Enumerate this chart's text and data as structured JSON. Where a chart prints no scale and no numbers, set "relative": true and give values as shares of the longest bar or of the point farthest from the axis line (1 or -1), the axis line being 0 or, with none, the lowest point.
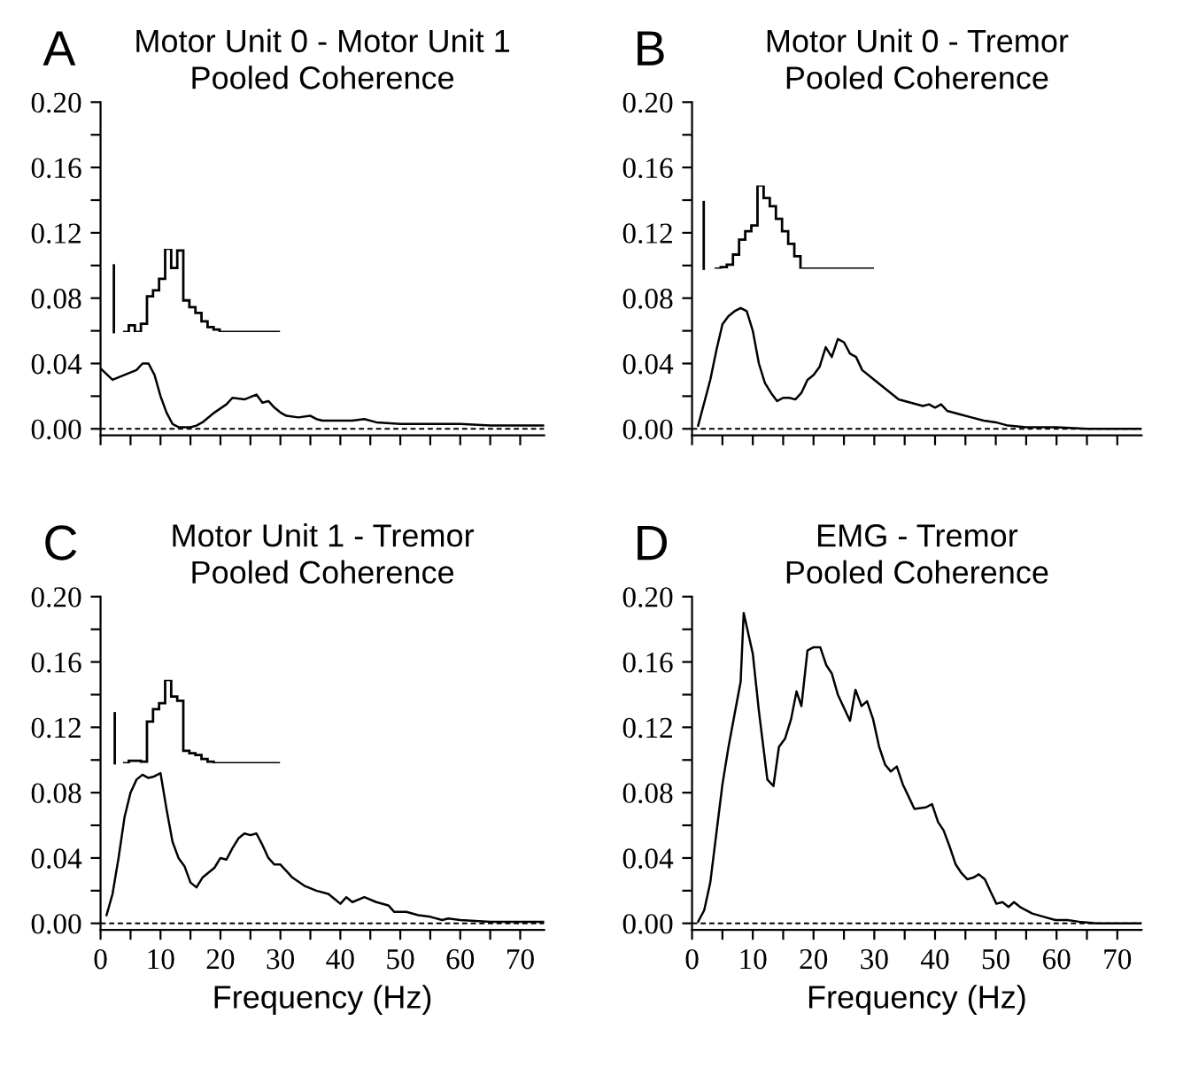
{
  "chart_data": [
    {
      "type": "line",
      "title": "Motor Unit 0 - Motor Unit 1",
      "subtitle": "Pooled Coherence",
      "annotations": [
        "A"
      ],
      "tick_labels": "y",
      "x": [
        0,
        2,
        4,
        6,
        7,
        8,
        9,
        10,
        11,
        12,
        13,
        15,
        16,
        17,
        19,
        21,
        22,
        24,
        26,
        27,
        28,
        29,
        30,
        31,
        33,
        35,
        36,
        37,
        40,
        42,
        44,
        46,
        50,
        55,
        60,
        65,
        70,
        74
      ],
      "series": [
        {
          "color": "#000000",
          "values": [
            0.037,
            0.03,
            0.033,
            0.036,
            0.04,
            0.04,
            0.033,
            0.02,
            0.01,
            0.003,
            0.001,
            0.001,
            0.002,
            0.004,
            0.01,
            0.015,
            0.019,
            0.018,
            0.021,
            0.016,
            0.017,
            0.013,
            0.01,
            0.008,
            0.007,
            0.008,
            0.006,
            0.005,
            0.005,
            0.005,
            0.006,
            0.004,
            0.003,
            0.003,
            0.003,
            0.002,
            0.002,
            0.002
          ]
        }
      ],
      "xlim": [
        0,
        74
      ],
      "ylim": [
        -0.004,
        0.2
      ],
      "xticks": [
        0,
        {
          "value": 5,
          "label": null
        },
        10,
        {
          "value": 15,
          "label": null
        },
        20,
        {
          "value": 25,
          "label": null
        },
        30,
        {
          "value": 35,
          "label": null
        },
        40,
        {
          "value": 45,
          "label": null
        },
        50,
        {
          "value": 55,
          "label": null
        },
        60,
        {
          "value": 65,
          "label": null
        },
        70
      ],
      "yticks": [
        {
          "value": 0,
          "label": "0.00"
        },
        {
          "value": 0.02,
          "label": null
        },
        {
          "value": 0.04,
          "label": "0.04"
        },
        {
          "value": 0.06,
          "label": null
        },
        {
          "value": 0.08,
          "label": "0.08"
        },
        {
          "value": 0.1,
          "label": null
        },
        {
          "value": 0.12,
          "label": "0.12"
        },
        {
          "value": 0.14,
          "label": null
        },
        {
          "value": 0.16,
          "label": "0.16"
        },
        {
          "value": 0.18,
          "label": null
        },
        {
          "value": 0.2,
          "label": "0.20"
        }
      ],
      "ref_lines": [
        {
          "axis": "y",
          "value": 0,
          "line_style": "dashed",
          "color": "#000000"
        }
      ]
    },
    {
      "type": "step",
      "relative": true,
      "categories": [
        null,
        null,
        null,
        null,
        null,
        null,
        null,
        null,
        null,
        null,
        null,
        null,
        null,
        null,
        null,
        null,
        null,
        null,
        null,
        null,
        null,
        null,
        null,
        null,
        null,
        null
      ],
      "values": [
        0,
        0.08,
        0,
        0.1,
        0.43,
        0.5,
        0.64,
        1.0,
        0.77,
        0.98,
        0.38,
        0.3,
        0.23,
        0.13,
        0.06,
        0.03,
        0,
        0,
        0,
        0,
        0,
        0,
        0,
        0,
        0,
        0
      ],
      "color": "#000000"
    },
    {
      "type": "line",
      "title": "Motor Unit 0 - Tremor",
      "subtitle": "Pooled Coherence",
      "annotations": [
        "B"
      ],
      "tick_labels": "y",
      "x": [
        1,
        3,
        4,
        5,
        6,
        7,
        8,
        9,
        10,
        11,
        12,
        13,
        14,
        15,
        16,
        17,
        18,
        19,
        20,
        21,
        22,
        23,
        24,
        25,
        26,
        27,
        28,
        30,
        32,
        34,
        36,
        38,
        39,
        40,
        41,
        42,
        44,
        46,
        48,
        50,
        52,
        55,
        60,
        65,
        70,
        74
      ],
      "series": [
        {
          "color": "#000000",
          "values": [
            0.002,
            0.03,
            0.048,
            0.064,
            0.069,
            0.072,
            0.074,
            0.072,
            0.06,
            0.04,
            0.028,
            0.022,
            0.017,
            0.019,
            0.019,
            0.018,
            0.022,
            0.03,
            0.033,
            0.038,
            0.05,
            0.044,
            0.055,
            0.053,
            0.046,
            0.044,
            0.036,
            0.03,
            0.024,
            0.018,
            0.016,
            0.014,
            0.015,
            0.013,
            0.015,
            0.011,
            0.009,
            0.007,
            0.005,
            0.004,
            0.002,
            0.001,
            0.001,
            0,
            0,
            0
          ]
        }
      ],
      "xlim": [
        0,
        74
      ],
      "ylim": [
        -0.004,
        0.2
      ],
      "xticks": [
        0,
        {
          "value": 5,
          "label": null
        },
        10,
        {
          "value": 15,
          "label": null
        },
        20,
        {
          "value": 25,
          "label": null
        },
        30,
        {
          "value": 35,
          "label": null
        },
        40,
        {
          "value": 45,
          "label": null
        },
        50,
        {
          "value": 55,
          "label": null
        },
        60,
        {
          "value": 65,
          "label": null
        },
        70
      ],
      "yticks": [
        {
          "value": 0,
          "label": "0.00"
        },
        {
          "value": 0.02,
          "label": null
        },
        {
          "value": 0.04,
          "label": "0.04"
        },
        {
          "value": 0.06,
          "label": null
        },
        {
          "value": 0.08,
          "label": "0.08"
        },
        {
          "value": 0.1,
          "label": null
        },
        {
          "value": 0.12,
          "label": "0.12"
        },
        {
          "value": 0.14,
          "label": null
        },
        {
          "value": 0.16,
          "label": "0.16"
        },
        {
          "value": 0.18,
          "label": null
        },
        {
          "value": 0.2,
          "label": "0.20"
        }
      ],
      "ref_lines": [
        {
          "axis": "y",
          "value": 0,
          "line_style": "dashed",
          "color": "#000000"
        }
      ]
    },
    {
      "type": "step",
      "relative": true,
      "categories": [
        null,
        null,
        null,
        null,
        null,
        null,
        null,
        null,
        null,
        null,
        null,
        null,
        null,
        null,
        null,
        null,
        null,
        null,
        null,
        null,
        null,
        null,
        null,
        null,
        null,
        null
      ],
      "values": [
        0,
        0.02,
        0.05,
        0.17,
        0.35,
        0.45,
        0.52,
        1.0,
        0.85,
        0.75,
        0.6,
        0.45,
        0.3,
        0.15,
        0,
        0,
        0,
        0,
        0,
        0,
        0,
        0,
        0,
        0,
        0,
        0
      ],
      "color": "#000000"
    },
    {
      "type": "line",
      "title": "Motor Unit 1 - Tremor",
      "subtitle": "Pooled Coherence",
      "annotations": [
        "C"
      ],
      "xlabel": "Frequency (Hz)",
      "x": [
        1,
        2,
        3,
        4,
        5,
        6,
        7,
        8,
        9,
        10,
        11,
        12,
        13,
        14,
        15,
        16,
        17,
        18,
        19,
        20,
        21,
        22,
        23,
        24,
        25,
        26,
        27,
        28,
        29,
        30,
        31,
        32,
        34,
        36,
        38,
        39,
        40,
        41,
        42,
        44,
        46,
        48,
        49,
        51,
        53,
        55,
        57,
        58,
        60,
        65,
        70,
        74
      ],
      "series": [
        {
          "color": "#000000",
          "values": [
            0.005,
            0.018,
            0.04,
            0.065,
            0.08,
            0.088,
            0.091,
            0.089,
            0.09,
            0.092,
            0.07,
            0.05,
            0.04,
            0.035,
            0.025,
            0.022,
            0.028,
            0.031,
            0.034,
            0.04,
            0.039,
            0.046,
            0.052,
            0.055,
            0.054,
            0.055,
            0.048,
            0.04,
            0.036,
            0.036,
            0.032,
            0.028,
            0.023,
            0.02,
            0.018,
            0.015,
            0.012,
            0.016,
            0.013,
            0.016,
            0.013,
            0.011,
            0.007,
            0.007,
            0.005,
            0.004,
            0.002,
            0.003,
            0.002,
            0.001,
            0.001,
            0.001
          ]
        }
      ],
      "xlim": [
        0,
        74
      ],
      "ylim": [
        -0.004,
        0.2
      ],
      "xticks": [
        0,
        {
          "value": 5,
          "label": null
        },
        10,
        {
          "value": 15,
          "label": null
        },
        20,
        {
          "value": 25,
          "label": null
        },
        30,
        {
          "value": 35,
          "label": null
        },
        40,
        {
          "value": 45,
          "label": null
        },
        50,
        {
          "value": 55,
          "label": null
        },
        60,
        {
          "value": 65,
          "label": null
        },
        70
      ],
      "yticks": [
        {
          "value": 0,
          "label": "0.00"
        },
        {
          "value": 0.02,
          "label": null
        },
        {
          "value": 0.04,
          "label": "0.04"
        },
        {
          "value": 0.06,
          "label": null
        },
        {
          "value": 0.08,
          "label": "0.08"
        },
        {
          "value": 0.1,
          "label": null
        },
        {
          "value": 0.12,
          "label": "0.12"
        },
        {
          "value": 0.14,
          "label": null
        },
        {
          "value": 0.16,
          "label": "0.16"
        },
        {
          "value": 0.18,
          "label": null
        },
        {
          "value": 0.2,
          "label": "0.20"
        }
      ],
      "ref_lines": [
        {
          "axis": "y",
          "value": 0,
          "line_style": "dashed",
          "color": "#000000"
        }
      ]
    },
    {
      "type": "step",
      "relative": true,
      "categories": [
        null,
        null,
        null,
        null,
        null,
        null,
        null,
        null,
        null,
        null,
        null,
        null,
        null,
        null,
        null,
        null,
        null,
        null,
        null,
        null,
        null,
        null,
        null,
        null,
        null,
        null
      ],
      "values": [
        0,
        0.03,
        0.03,
        0.02,
        0.5,
        0.65,
        0.72,
        1.0,
        0.8,
        0.75,
        0.15,
        0.12,
        0.1,
        0.05,
        0.02,
        0,
        0,
        0,
        0,
        0,
        0,
        0,
        0,
        0,
        0,
        0
      ],
      "color": "#000000"
    },
    {
      "type": "line",
      "title": "EMG - Tremor",
      "subtitle": "Pooled Coherence",
      "annotations": [
        "D"
      ],
      "xlabel": "Frequency (Hz)",
      "x": [
        1,
        2,
        3,
        4,
        5,
        6,
        7,
        8,
        8.5,
        10,
        11,
        12.4,
        13.4,
        14.3,
        15.3,
        16.3,
        17.2,
        18,
        19,
        20,
        21.1,
        22.1,
        23,
        24,
        26,
        26.9,
        27.9,
        28.8,
        29.8,
        30.8,
        31.8,
        32.7,
        33.7,
        34.7,
        35.6,
        36.6,
        38.5,
        39.5,
        40.5,
        41.4,
        42.4,
        43.4,
        44.3,
        45.3,
        46.3,
        47.2,
        48.2,
        49.2,
        50.1,
        51.1,
        52.1,
        53,
        54,
        56,
        57.9,
        59.8,
        61.8,
        63.7,
        66.6,
        74
      ],
      "series": [
        {
          "color": "#000000",
          "values": [
            0.001,
            0.008,
            0.025,
            0.055,
            0.085,
            0.108,
            0.128,
            0.148,
            0.19,
            0.165,
            0.13,
            0.088,
            0.084,
            0.108,
            0.113,
            0.125,
            0.142,
            0.133,
            0.167,
            0.169,
            0.169,
            0.158,
            0.153,
            0.14,
            0.124,
            0.143,
            0.133,
            0.136,
            0.125,
            0.108,
            0.097,
            0.093,
            0.096,
            0.085,
            0.078,
            0.07,
            0.071,
            0.073,
            0.062,
            0.057,
            0.047,
            0.036,
            0.031,
            0.027,
            0.028,
            0.03,
            0.027,
            0.019,
            0.012,
            0.013,
            0.01,
            0.013,
            0.01,
            0.006,
            0.004,
            0.002,
            0.002,
            0.001,
            0,
            0
          ]
        }
      ],
      "xlim": [
        0,
        74
      ],
      "ylim": [
        -0.004,
        0.2
      ],
      "xticks": [
        0,
        {
          "value": 5,
          "label": null
        },
        10,
        {
          "value": 15,
          "label": null
        },
        20,
        {
          "value": 25,
          "label": null
        },
        30,
        {
          "value": 35,
          "label": null
        },
        40,
        {
          "value": 45,
          "label": null
        },
        50,
        {
          "value": 55,
          "label": null
        },
        60,
        {
          "value": 65,
          "label": null
        },
        70
      ],
      "yticks": [
        {
          "value": 0,
          "label": "0.00"
        },
        {
          "value": 0.02,
          "label": null
        },
        {
          "value": 0.04,
          "label": "0.04"
        },
        {
          "value": 0.06,
          "label": null
        },
        {
          "value": 0.08,
          "label": "0.08"
        },
        {
          "value": 0.1,
          "label": null
        },
        {
          "value": 0.12,
          "label": "0.12"
        },
        {
          "value": 0.14,
          "label": null
        },
        {
          "value": 0.16,
          "label": "0.16"
        },
        {
          "value": 0.18,
          "label": null
        },
        {
          "value": 0.2,
          "label": "0.20"
        }
      ],
      "ref_lines": [
        {
          "axis": "y",
          "value": 0,
          "line_style": "dashed",
          "color": "#000000"
        }
      ]
    }
  ]
}
